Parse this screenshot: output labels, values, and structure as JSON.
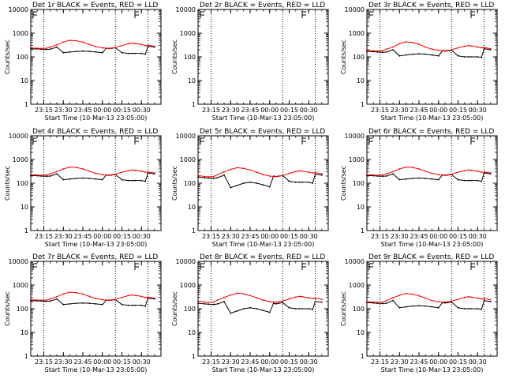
{
  "chart_data": {
    "type": "line",
    "ylabel": "Counts/sec",
    "yscale": "log",
    "ylim": [
      1,
      10000
    ],
    "yticks": [
      "1",
      "10",
      "100",
      "1000",
      "10000"
    ],
    "xticks": [
      "23:15",
      "23:30",
      "23:45",
      "00:00",
      "00:15",
      "00:30"
    ],
    "xlabel": "Start Time (10-Mar-13 23:05:00)",
    "series_colors": {
      "events": "#000000",
      "lld": "#ff0000"
    },
    "panels": [
      {
        "title": "Det 1r BLACK = Events, RED = LLD",
        "time_min": [
          0,
          5,
          8,
          12,
          15,
          20,
          25,
          30,
          35,
          40,
          45,
          50,
          55,
          58,
          60,
          62,
          65,
          70,
          75,
          78,
          80,
          85,
          88,
          90,
          95
        ],
        "lld": [
          240,
          230,
          225,
          230,
          260,
          320,
          420,
          500,
          480,
          420,
          330,
          270,
          240,
          230,
          230,
          235,
          250,
          300,
          360,
          380,
          370,
          330,
          300,
          310,
          280
        ],
        "events": [
          220,
          215,
          210,
          205,
          210,
          260,
          150,
          160,
          170,
          175,
          170,
          160,
          150,
          230,
          225,
          230,
          240,
          150,
          140,
          140,
          140,
          140,
          130,
          280,
          260
        ]
      },
      {
        "title": "Det 2r BLACK = Events, RED = LLD",
        "time_min": [],
        "lld": [],
        "events": []
      },
      {
        "title": "Det 3r BLACK = Events, RED = LLD",
        "time_min": [
          0,
          5,
          8,
          12,
          15,
          20,
          25,
          30,
          35,
          40,
          45,
          50,
          55,
          58,
          60,
          62,
          65,
          70,
          75,
          78,
          80,
          85,
          88,
          90,
          95
        ],
        "lld": [
          190,
          180,
          175,
          180,
          210,
          260,
          360,
          430,
          400,
          340,
          260,
          210,
          190,
          180,
          180,
          185,
          200,
          240,
          280,
          300,
          290,
          260,
          240,
          250,
          220
        ],
        "events": [
          170,
          165,
          160,
          155,
          160,
          200,
          110,
          120,
          130,
          135,
          130,
          120,
          110,
          180,
          175,
          180,
          190,
          110,
          100,
          100,
          100,
          100,
          95,
          220,
          200
        ]
      },
      {
        "title": "Det 4r BLACK = Events, RED = LLD",
        "time_min": [
          0,
          5,
          8,
          12,
          15,
          20,
          25,
          30,
          35,
          40,
          45,
          50,
          55,
          58,
          60,
          62,
          65,
          70,
          75,
          78,
          80,
          85,
          88,
          90,
          95
        ],
        "lld": [
          230,
          220,
          215,
          220,
          250,
          310,
          400,
          480,
          460,
          400,
          320,
          260,
          230,
          220,
          220,
          225,
          240,
          290,
          340,
          360,
          350,
          320,
          290,
          300,
          270
        ],
        "events": [
          210,
          205,
          200,
          195,
          200,
          250,
          140,
          150,
          160,
          165,
          160,
          150,
          140,
          220,
          215,
          220,
          230,
          140,
          130,
          130,
          130,
          130,
          120,
          270,
          250
        ]
      },
      {
        "title": "Det 5r BLACK = Events, RED = LLD",
        "time_min": [
          0,
          5,
          8,
          12,
          15,
          20,
          25,
          30,
          35,
          40,
          45,
          50,
          55,
          58,
          60,
          62,
          65,
          70,
          75,
          78,
          80,
          85,
          88,
          90,
          95
        ],
        "lld": [
          210,
          190,
          185,
          190,
          230,
          300,
          380,
          450,
          420,
          360,
          290,
          230,
          200,
          190,
          190,
          195,
          210,
          260,
          310,
          330,
          320,
          290,
          270,
          280,
          250
        ],
        "events": [
          180,
          170,
          165,
          160,
          170,
          220,
          65,
          80,
          100,
          110,
          100,
          85,
          70,
          200,
          190,
          200,
          210,
          120,
          110,
          110,
          110,
          110,
          100,
          240,
          220
        ]
      },
      {
        "title": "Det 6r BLACK = Events, RED = LLD",
        "time_min": [
          0,
          5,
          8,
          12,
          15,
          20,
          25,
          30,
          35,
          40,
          45,
          50,
          55,
          58,
          60,
          62,
          65,
          70,
          75,
          78,
          80,
          85,
          88,
          90,
          95
        ],
        "lld": [
          230,
          220,
          215,
          220,
          250,
          310,
          400,
          480,
          460,
          400,
          320,
          260,
          230,
          220,
          220,
          225,
          240,
          290,
          340,
          360,
          350,
          320,
          290,
          300,
          270
        ],
        "events": [
          210,
          205,
          200,
          195,
          200,
          250,
          140,
          150,
          160,
          165,
          160,
          150,
          140,
          220,
          215,
          220,
          230,
          140,
          130,
          130,
          130,
          130,
          120,
          270,
          250
        ]
      },
      {
        "title": "Det 7r BLACK = Events, RED = LLD",
        "time_min": [
          0,
          5,
          8,
          12,
          15,
          20,
          25,
          30,
          35,
          40,
          45,
          50,
          55,
          58,
          60,
          62,
          65,
          70,
          75,
          78,
          80,
          85,
          88,
          90,
          95
        ],
        "lld": [
          240,
          230,
          225,
          230,
          260,
          320,
          420,
          500,
          480,
          420,
          330,
          270,
          240,
          230,
          230,
          235,
          250,
          300,
          360,
          380,
          370,
          330,
          300,
          310,
          280
        ],
        "events": [
          220,
          215,
          210,
          205,
          210,
          260,
          150,
          160,
          170,
          175,
          170,
          160,
          150,
          230,
          225,
          230,
          240,
          150,
          140,
          140,
          140,
          140,
          130,
          280,
          260
        ]
      },
      {
        "title": "Det 8r BLACK = Events, RED = LLD",
        "time_min": [
          0,
          5,
          8,
          12,
          15,
          20,
          25,
          30,
          35,
          40,
          45,
          50,
          55,
          58,
          60,
          62,
          65,
          70,
          75,
          78,
          80,
          85,
          88,
          90,
          95
        ],
        "lld": [
          210,
          190,
          185,
          190,
          230,
          300,
          380,
          450,
          420,
          360,
          290,
          230,
          200,
          190,
          190,
          195,
          210,
          260,
          310,
          330,
          320,
          290,
          270,
          280,
          250
        ],
        "events": [
          170,
          160,
          155,
          150,
          160,
          200,
          65,
          80,
          100,
          110,
          100,
          85,
          70,
          170,
          160,
          170,
          180,
          110,
          100,
          100,
          100,
          100,
          95,
          200,
          190
        ]
      },
      {
        "title": "Det 9r BLACK = Events, RED = LLD",
        "time_min": [
          0,
          5,
          8,
          12,
          15,
          20,
          25,
          30,
          35,
          40,
          45,
          50,
          55,
          58,
          60,
          62,
          65,
          70,
          75,
          78,
          80,
          85,
          88,
          90,
          95
        ],
        "lld": [
          200,
          190,
          185,
          190,
          220,
          290,
          370,
          440,
          410,
          350,
          280,
          220,
          200,
          190,
          190,
          195,
          210,
          250,
          300,
          320,
          310,
          280,
          260,
          270,
          240
        ],
        "events": [
          180,
          175,
          170,
          165,
          170,
          220,
          110,
          120,
          130,
          135,
          130,
          120,
          110,
          180,
          175,
          180,
          190,
          110,
          100,
          100,
          100,
          100,
          95,
          220,
          200
        ]
      }
    ]
  }
}
